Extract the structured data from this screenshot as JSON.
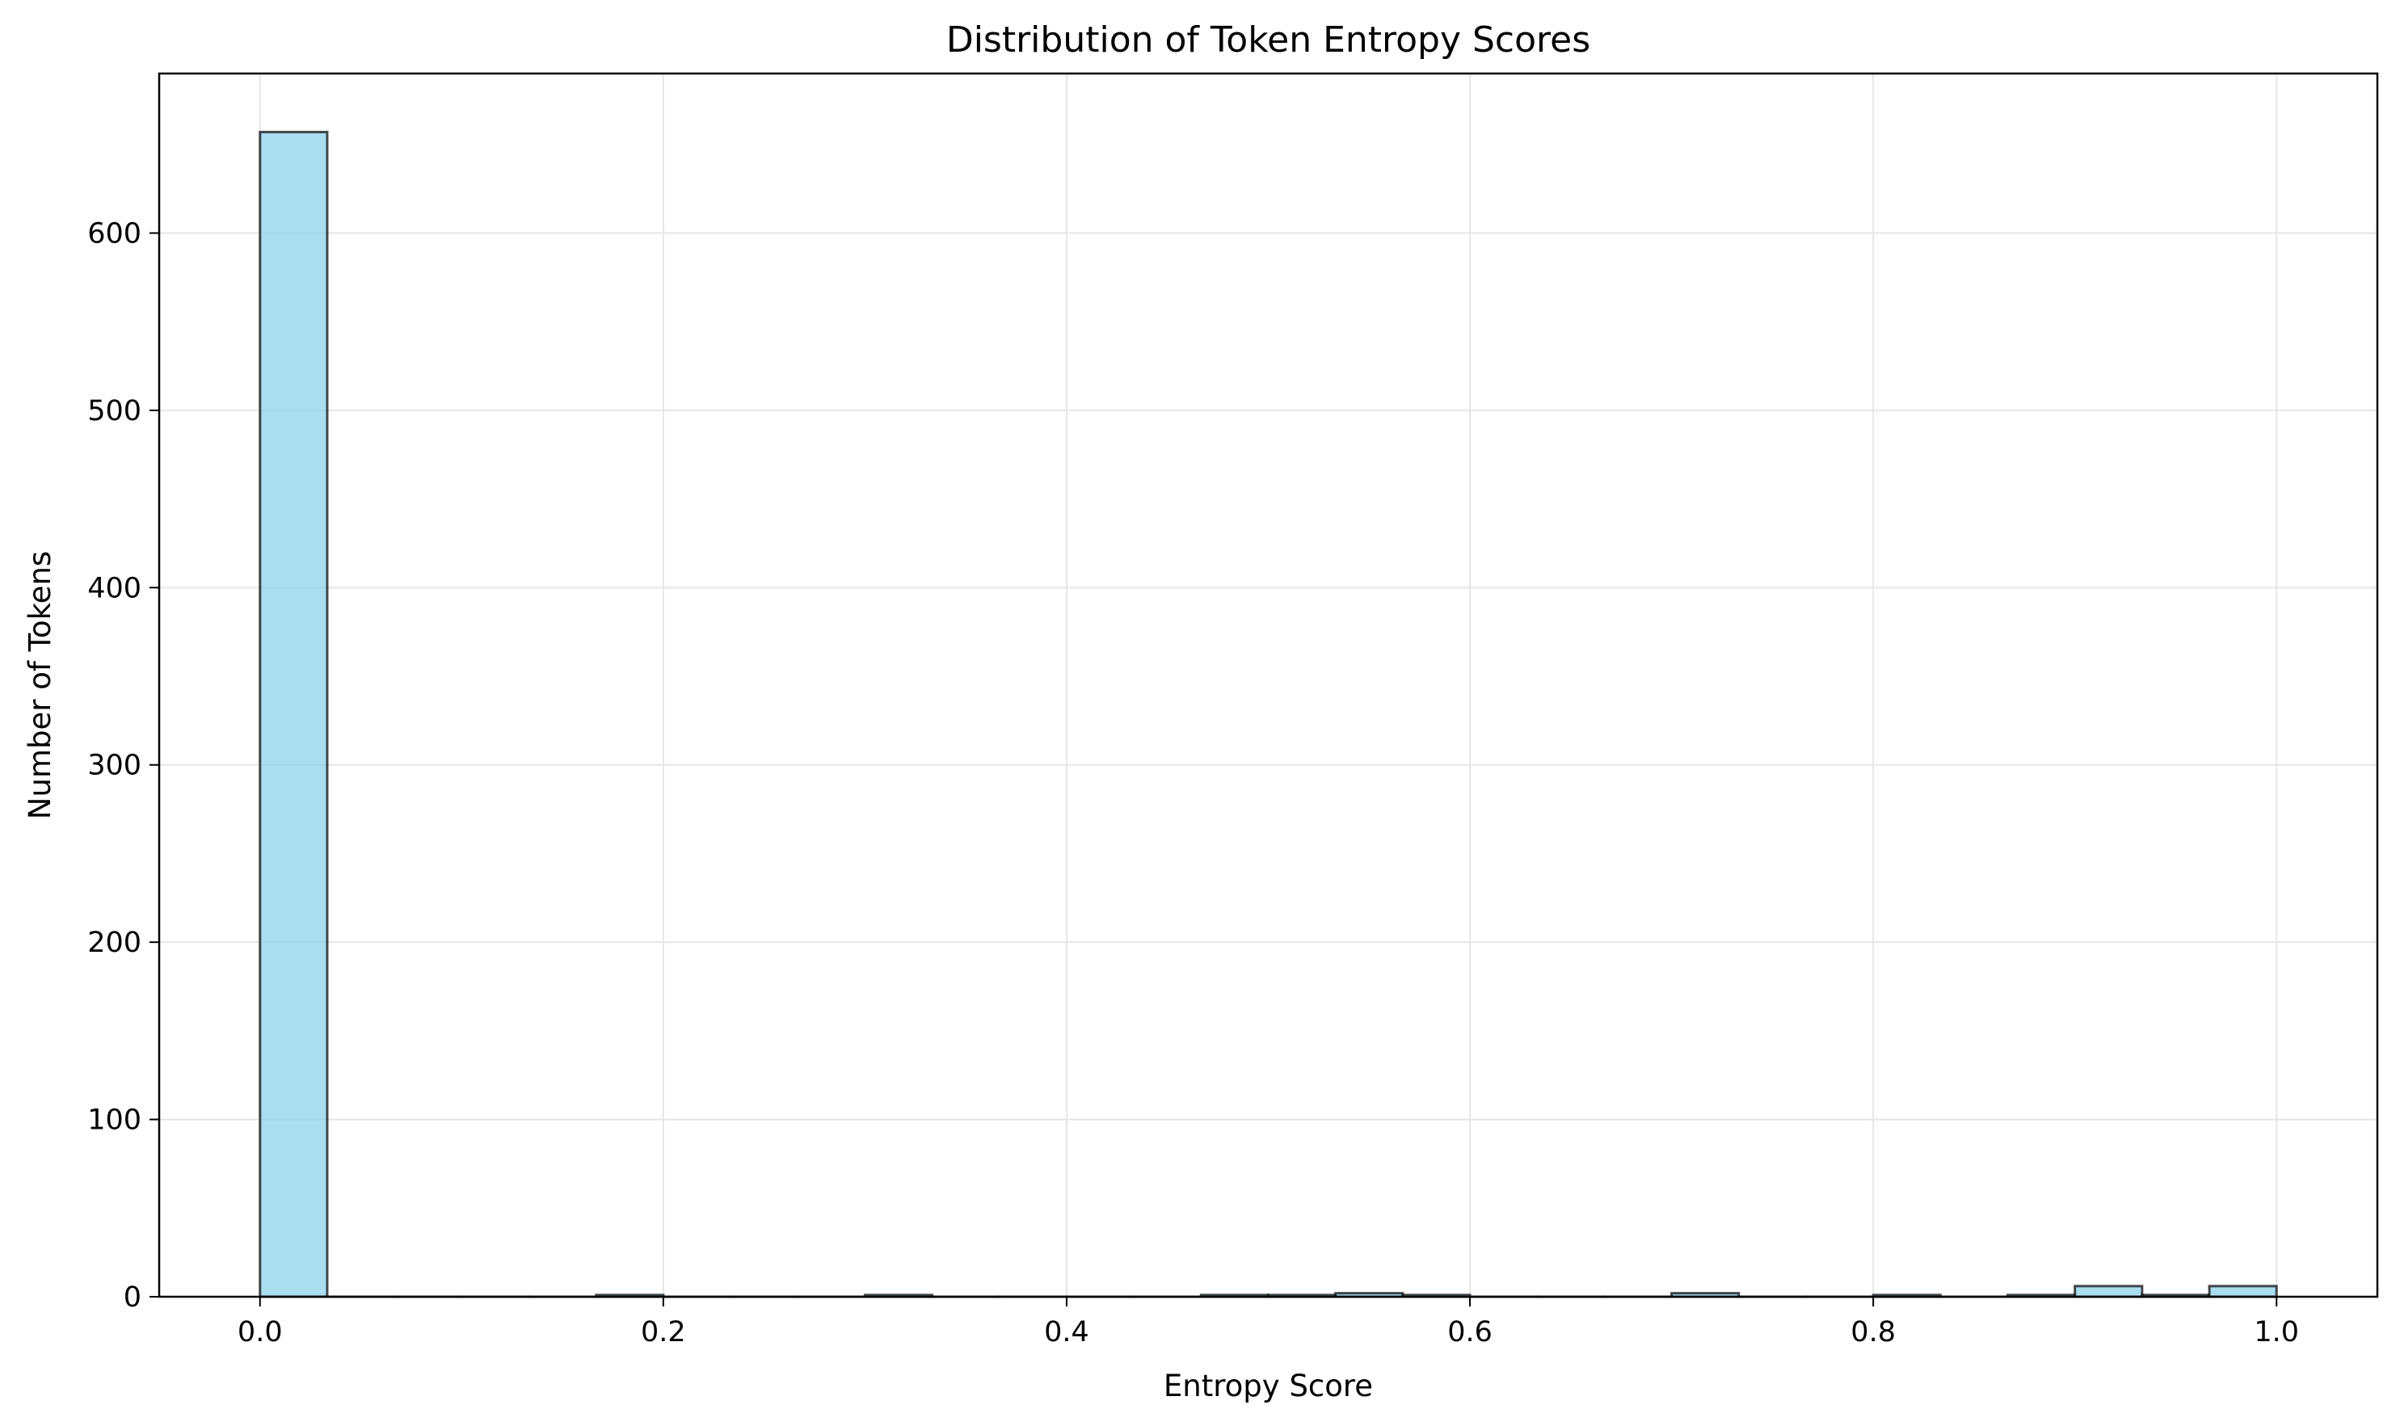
{
  "chart_data": {
    "type": "bar",
    "title": "Distribution of Token Entropy Scores",
    "xlabel": "Entropy Score",
    "ylabel": "Number of Tokens",
    "xlim": [
      -0.05,
      1.05
    ],
    "ylim": [
      0,
      690
    ],
    "x_ticks": [
      0.0,
      0.2,
      0.4,
      0.6,
      0.8,
      1.0
    ],
    "x_tick_labels": [
      "0.0",
      "0.2",
      "0.4",
      "0.6",
      "0.8",
      "1.0"
    ],
    "y_ticks": [
      0,
      100,
      200,
      300,
      400,
      500,
      600
    ],
    "y_tick_labels": [
      "0",
      "100",
      "200",
      "300",
      "400",
      "500",
      "600"
    ],
    "bin_range": [
      0.0,
      1.0
    ],
    "bin_count": 30,
    "values": [
      657,
      0,
      0,
      0,
      0,
      1,
      0,
      0,
      0,
      1,
      0,
      0,
      0,
      0,
      1,
      1,
      2,
      1,
      0,
      0,
      0,
      2,
      0,
      0,
      1,
      0,
      1,
      6,
      1,
      6
    ],
    "grid": true,
    "legend": "none",
    "colors": {
      "bar_fill": "#87ceeb",
      "bar_edge": "#000000",
      "grid": "#e6e6e6",
      "axes": "#000000"
    }
  }
}
